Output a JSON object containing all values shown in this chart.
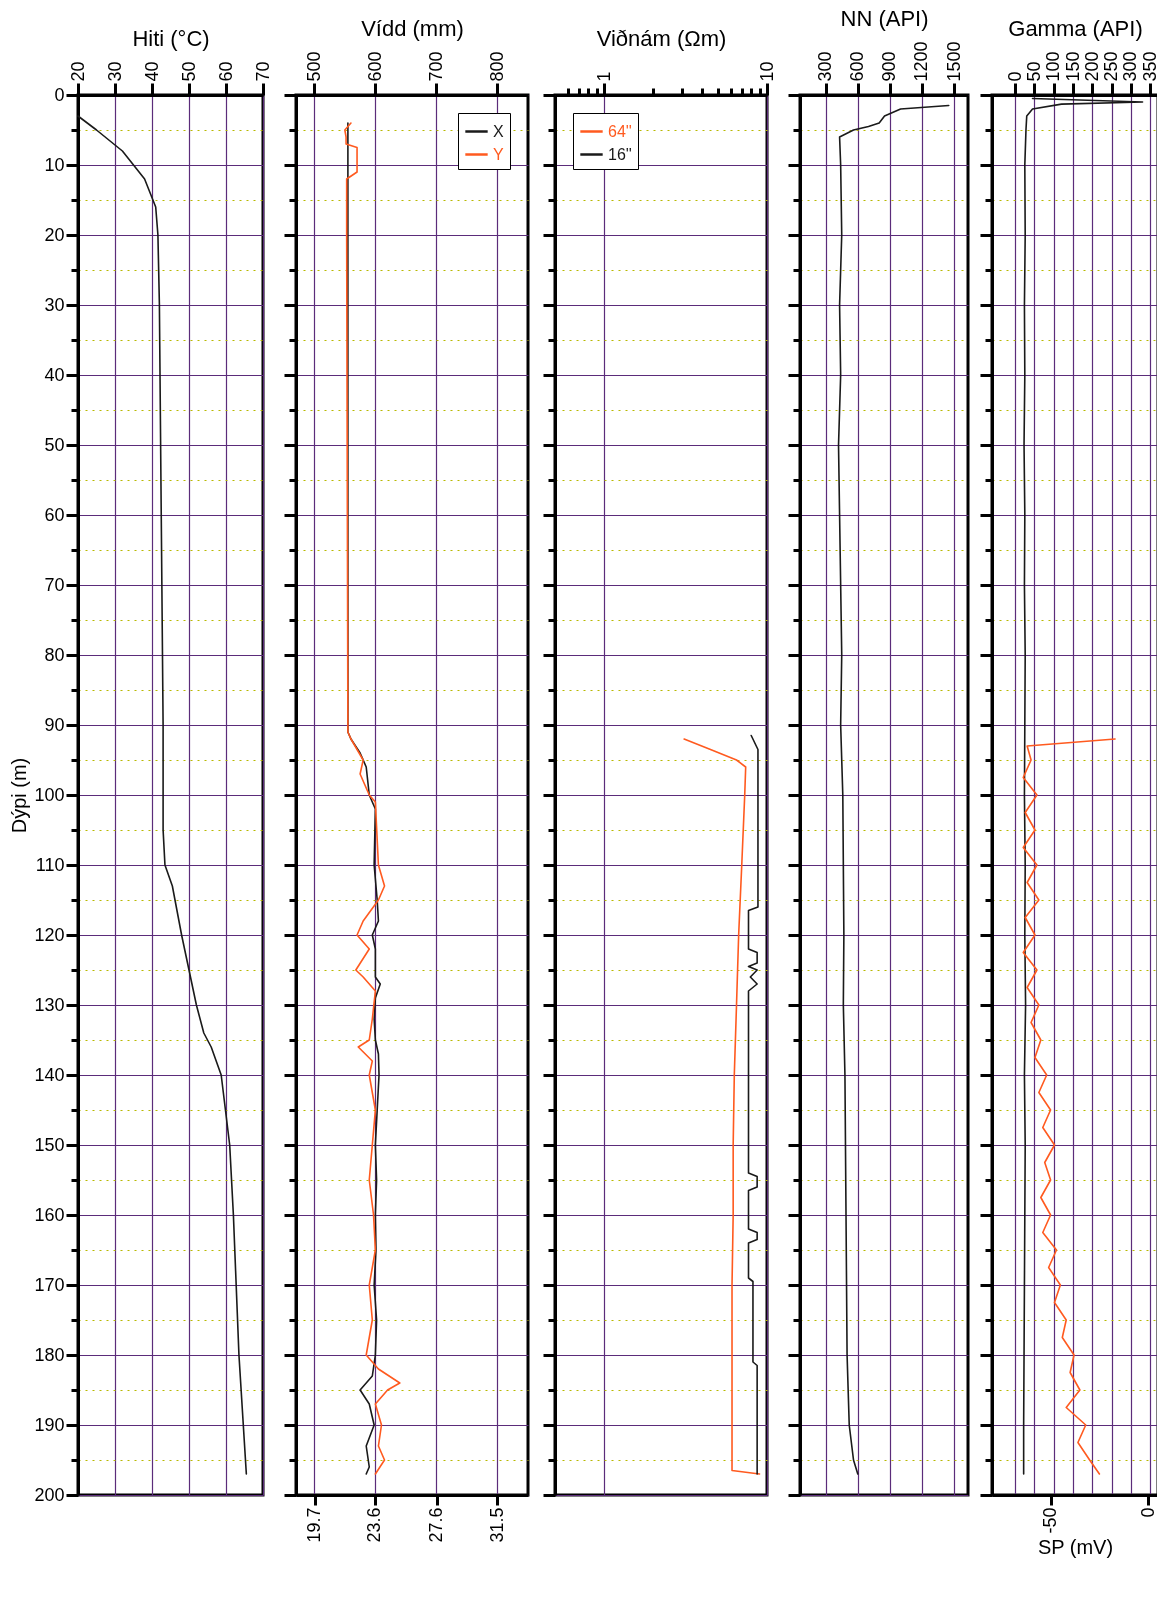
{
  "chart_data": [
    {
      "type": "line",
      "xlabel": "Hiti (°C)",
      "ylabel": "Dýpi (m)",
      "xlim": [
        20,
        70
      ],
      "xticks": [
        20,
        30,
        40,
        50,
        60,
        70
      ],
      "ylim": [
        200,
        0
      ],
      "grid": true,
      "yticks": [
        0,
        {
          "value": 5,
          "label": null
        },
        10,
        {
          "value": 15,
          "label": null
        },
        20,
        {
          "value": 25,
          "label": null
        },
        30,
        {
          "value": 35,
          "label": null
        },
        40,
        {
          "value": 45,
          "label": null
        },
        50,
        {
          "value": 55,
          "label": null
        },
        60,
        {
          "value": 65,
          "label": null
        },
        70,
        {
          "value": 75,
          "label": null
        },
        80,
        {
          "value": 85,
          "label": null
        },
        90,
        {
          "value": 95,
          "label": null
        },
        100,
        {
          "value": 105,
          "label": null
        },
        110,
        {
          "value": 115,
          "label": null
        },
        120,
        {
          "value": 125,
          "label": null
        },
        130,
        {
          "value": 135,
          "label": null
        },
        140,
        {
          "value": 145,
          "label": null
        },
        150,
        {
          "value": 155,
          "label": null
        },
        160,
        {
          "value": 165,
          "label": null
        },
        170,
        {
          "value": 175,
          "label": null
        },
        180,
        {
          "value": 185,
          "label": null
        },
        190,
        {
          "value": 195,
          "label": null
        },
        200
      ],
      "series": [
        {
          "color": "#1a1a1a",
          "x": [
            20,
            25,
            32,
            38,
            41,
            41.6,
            42,
            42.5,
            43,
            43,
            43.5,
            45.5,
            48,
            50,
            52,
            54,
            56,
            58.7,
            61,
            62,
            63.5,
            65.5
          ],
          "values": [
            3,
            5,
            8,
            12,
            16,
            20,
            30,
            60,
            90,
            105,
            110,
            113,
            120,
            125,
            130,
            134,
            136,
            140,
            150,
            160,
            180,
            197
          ]
        }
      ]
    },
    {
      "type": "line",
      "xlabel": "Vídd (mm)",
      "xlim": [
        470,
        850
      ],
      "xticks": [
        500,
        600,
        700,
        800
      ],
      "x2lim": [
        18.5,
        33.5
      ],
      "x2ticks": [
        19.7,
        23.6,
        27.6,
        31.5
      ],
      "ylim": [
        200,
        0
      ],
      "grid": true,
      "tick_labels": "x",
      "legend": "top right",
      "yticks": [
        0,
        {
          "value": 5,
          "label": null
        },
        10,
        {
          "value": 15,
          "label": null
        },
        20,
        {
          "value": 25,
          "label": null
        },
        30,
        {
          "value": 35,
          "label": null
        },
        40,
        {
          "value": 45,
          "label": null
        },
        50,
        {
          "value": 55,
          "label": null
        },
        60,
        {
          "value": 65,
          "label": null
        },
        70,
        {
          "value": 75,
          "label": null
        },
        80,
        {
          "value": 85,
          "label": null
        },
        90,
        {
          "value": 95,
          "label": null
        },
        100,
        {
          "value": 105,
          "label": null
        },
        110,
        {
          "value": 115,
          "label": null
        },
        120,
        {
          "value": 125,
          "label": null
        },
        130,
        {
          "value": 135,
          "label": null
        },
        140,
        {
          "value": 145,
          "label": null
        },
        150,
        {
          "value": 155,
          "label": null
        },
        160,
        {
          "value": 165,
          "label": null
        },
        170,
        {
          "value": 175,
          "label": null
        },
        180,
        {
          "value": 185,
          "label": null
        },
        190,
        {
          "value": 195,
          "label": null
        },
        200
      ],
      "series": [
        {
          "name": "X",
          "color": "#1a1a1a",
          "x": [
            555,
            555,
            555,
            560,
            575,
            585,
            590,
            600,
            598,
            603,
            605,
            595,
            600,
            600,
            608,
            600,
            598,
            600,
            605,
            606,
            603,
            600,
            602,
            600,
            601,
            598,
            602,
            600,
            595,
            575,
            590,
            598,
            585,
            590,
            585
          ],
          "values": [
            4,
            50,
            91,
            92,
            94,
            96,
            100,
            102,
            110,
            115,
            118,
            120,
            122,
            126,
            127,
            129,
            132,
            135,
            137,
            140,
            145,
            150,
            155,
            160,
            165,
            170,
            175,
            180,
            183,
            185,
            187,
            190,
            193,
            196,
            197
          ]
        },
        {
          "name": "Y",
          "color": "#ff5a1f",
          "x": [
            560,
            550,
            552,
            552,
            570,
            570,
            553,
            553,
            555,
            560,
            580,
            575,
            590,
            600,
            605,
            615,
            605,
            580,
            570,
            590,
            568,
            580,
            600,
            595,
            590,
            572,
            595,
            590,
            600,
            595,
            590,
            597,
            600,
            590,
            595,
            585,
            605,
            640,
            620,
            600,
            610,
            605,
            615,
            600
          ],
          "values": [
            4,
            5,
            6,
            7,
            7.5,
            11,
            12,
            20,
            91,
            92,
            95,
            97,
            100,
            101,
            110,
            113,
            115,
            118,
            120,
            122,
            125,
            126,
            128,
            132,
            135,
            136,
            138,
            140,
            145,
            150,
            155,
            160,
            165,
            170,
            175,
            180,
            182,
            184,
            185,
            187,
            190,
            193,
            195,
            197
          ]
        }
      ]
    },
    {
      "type": "line",
      "xlabel": "Viðnám (Ωm)",
      "log": "x",
      "xlim": [
        0.5,
        10
      ],
      "xticks": [
        {
          "value": 0.6,
          "label": null
        },
        {
          "value": 0.7,
          "label": null
        },
        {
          "value": 0.8,
          "label": null
        },
        {
          "value": 0.9,
          "label": null
        },
        1,
        {
          "value": 2,
          "label": null
        },
        {
          "value": 3,
          "label": null
        },
        {
          "value": 4,
          "label": null
        },
        {
          "value": 5,
          "label": null
        },
        {
          "value": 6,
          "label": null
        },
        {
          "value": 7,
          "label": null
        },
        {
          "value": 8,
          "label": null
        },
        {
          "value": 9,
          "label": null
        },
        10
      ],
      "ylim": [
        200,
        0
      ],
      "grid": true,
      "tick_labels": "x",
      "legend": "top left",
      "yticks": [
        0,
        {
          "value": 5,
          "label": null
        },
        10,
        {
          "value": 15,
          "label": null
        },
        20,
        {
          "value": 25,
          "label": null
        },
        30,
        {
          "value": 35,
          "label": null
        },
        40,
        {
          "value": 45,
          "label": null
        },
        50,
        {
          "value": 55,
          "label": null
        },
        60,
        {
          "value": 65,
          "label": null
        },
        70,
        {
          "value": 75,
          "label": null
        },
        80,
        {
          "value": 85,
          "label": null
        },
        90,
        {
          "value": 95,
          "label": null
        },
        100,
        {
          "value": 105,
          "label": null
        },
        110,
        {
          "value": 115,
          "label": null
        },
        120,
        {
          "value": 125,
          "label": null
        },
        130,
        {
          "value": 135,
          "label": null
        },
        140,
        {
          "value": 145,
          "label": null
        },
        150,
        {
          "value": 155,
          "label": null
        },
        160,
        {
          "value": 165,
          "label": null
        },
        170,
        {
          "value": 175,
          "label": null
        },
        180,
        {
          "value": 185,
          "label": null
        },
        190,
        {
          "value": 195,
          "label": null
        },
        200
      ],
      "series": [
        {
          "name": "64''",
          "color": "#ff5a1f",
          "x": [
            3.1,
            4.5,
            6.5,
            7.4,
            7.3,
            7,
            6.7,
            6.5,
            6.3,
            6.2,
            6.2,
            6.1,
            6.1,
            6.1,
            6.1,
            9
          ],
          "values": [
            92,
            93.5,
            95,
            96,
            100,
            110,
            120,
            130,
            140,
            150,
            160,
            170,
            180,
            190,
            196.5,
            197
          ]
        },
        {
          "name": "16''",
          "color": "#1a1a1a",
          "x": [
            8,
            8.8,
            8.8,
            7.7,
            7.7,
            8.7,
            8.7,
            7.7,
            8.7,
            7.9,
            8.7,
            7.7,
            7.7,
            8.7,
            8.7,
            7.7,
            7.7,
            8.7,
            8.7,
            7.7,
            7.7,
            8.2,
            8.2,
            8.7,
            8.7
          ],
          "values": [
            91.5,
            93.5,
            116,
            116.5,
            122,
            122.5,
            124,
            124.5,
            125,
            126,
            127,
            128,
            154,
            154.5,
            156,
            156.5,
            162,
            162.5,
            163.5,
            164,
            169,
            169.5,
            181,
            181.5,
            197
          ]
        }
      ]
    },
    {
      "type": "line",
      "xlabel": "NN (API)",
      "xlim": [
        60,
        1630
      ],
      "xticks": [
        300,
        600,
        900,
        1200,
        1500
      ],
      "ylim": [
        200,
        0
      ],
      "grid": true,
      "tick_labels": "x",
      "yticks": [
        0,
        {
          "value": 5,
          "label": null
        },
        10,
        {
          "value": 15,
          "label": null
        },
        20,
        {
          "value": 25,
          "label": null
        },
        30,
        {
          "value": 35,
          "label": null
        },
        40,
        {
          "value": 45,
          "label": null
        },
        50,
        {
          "value": 55,
          "label": null
        },
        60,
        {
          "value": 65,
          "label": null
        },
        70,
        {
          "value": 75,
          "label": null
        },
        80,
        {
          "value": 85,
          "label": null
        },
        90,
        {
          "value": 95,
          "label": null
        },
        100,
        {
          "value": 105,
          "label": null
        },
        110,
        {
          "value": 115,
          "label": null
        },
        120,
        {
          "value": 125,
          "label": null
        },
        130,
        {
          "value": 135,
          "label": null
        },
        140,
        {
          "value": 145,
          "label": null
        },
        150,
        {
          "value": 155,
          "label": null
        },
        160,
        {
          "value": 165,
          "label": null
        },
        170,
        {
          "value": 175,
          "label": null
        },
        180,
        {
          "value": 185,
          "label": null
        },
        190,
        {
          "value": 195,
          "label": null
        },
        200
      ],
      "series": [
        {
          "color": "#1a1a1a",
          "x": [
            1450,
            1000,
            850,
            800,
            700,
            560,
            430,
            440,
            450,
            430,
            440,
            420,
            430,
            450,
            440,
            460,
            470,
            465,
            480,
            490,
            500,
            520,
            560,
            600
          ],
          "values": [
            1.5,
            2,
            3,
            4,
            4.5,
            5,
            6,
            10,
            20,
            30,
            40,
            50,
            60,
            80,
            90,
            100,
            120,
            130,
            140,
            160,
            180,
            190,
            195,
            197
          ]
        }
      ]
    },
    {
      "type": "line",
      "xlabel": "Gamma (API)",
      "xlim": [
        -60,
        370
      ],
      "xticks": [
        0,
        50,
        100,
        150,
        200,
        250,
        300,
        350
      ],
      "x2label": "SP (mV)",
      "x2lim": [
        -80,
        5
      ],
      "x2ticks": [
        -50,
        0
      ],
      "ylim": [
        200,
        0
      ],
      "grid": true,
      "tick_labels": "x",
      "yticks": [
        0,
        {
          "value": 5,
          "label": null
        },
        10,
        {
          "value": 15,
          "label": null
        },
        20,
        {
          "value": 25,
          "label": null
        },
        30,
        {
          "value": 35,
          "label": null
        },
        40,
        {
          "value": 45,
          "label": null
        },
        50,
        {
          "value": 55,
          "label": null
        },
        60,
        {
          "value": 65,
          "label": null
        },
        70,
        {
          "value": 75,
          "label": null
        },
        80,
        {
          "value": 85,
          "label": null
        },
        90,
        {
          "value": 95,
          "label": null
        },
        100,
        {
          "value": 105,
          "label": null
        },
        110,
        {
          "value": 115,
          "label": null
        },
        120,
        {
          "value": 125,
          "label": null
        },
        130,
        {
          "value": 135,
          "label": null
        },
        140,
        {
          "value": 145,
          "label": null
        },
        150,
        {
          "value": 155,
          "label": null
        },
        160,
        {
          "value": 165,
          "label": null
        },
        170,
        {
          "value": 175,
          "label": null
        },
        180,
        {
          "value": 185,
          "label": null
        },
        190,
        {
          "value": 195,
          "label": null
        },
        200
      ],
      "series": [
        {
          "color": "#1a1a1a",
          "x": [
            45,
            330,
            120,
            45,
            30,
            28,
            25,
            26,
            24,
            25,
            23,
            25,
            24,
            26,
            25,
            24,
            26,
            25,
            27,
            24,
            26,
            25,
            24,
            23,
            22,
            22
          ],
          "values": [
            0.5,
            1,
            1.3,
            2,
            3,
            5,
            10,
            20,
            30,
            40,
            50,
            60,
            70,
            80,
            90,
            100,
            110,
            120,
            130,
            140,
            150,
            160,
            170,
            180,
            190,
            197
          ]
        },
        {
          "color": "#ff5a1f",
          "axis": "x2",
          "x": [
            -17,
            -62,
            -60,
            -64,
            -57,
            -63,
            -58,
            -64,
            -57,
            -62,
            -56,
            -63,
            -58,
            -64,
            -57,
            -62,
            -56,
            -60,
            -55,
            -58,
            -52,
            -56,
            -50,
            -54,
            -48,
            -53,
            -50,
            -55,
            -50,
            -54,
            -47,
            -51,
            -45,
            -48,
            -42,
            -44,
            -38,
            -40,
            -35,
            -42,
            -32,
            -36,
            -30,
            -25
          ],
          "values": [
            92,
            93,
            95,
            97.5,
            100,
            102.5,
            105,
            107.5,
            110,
            112.5,
            115,
            117.5,
            120,
            122.5,
            125,
            127.5,
            130,
            132.5,
            135,
            137.5,
            140,
            142.5,
            145,
            147.5,
            150,
            152.5,
            155,
            157.5,
            160,
            162.5,
            165,
            167.5,
            170,
            172.5,
            175,
            177.5,
            180,
            182.5,
            185,
            187.5,
            190,
            192.5,
            195,
            197
          ]
        }
      ]
    }
  ]
}
